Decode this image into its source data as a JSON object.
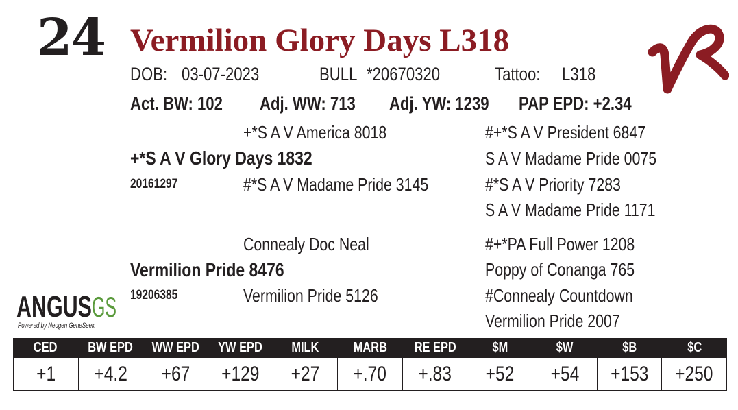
{
  "lot_number": "24",
  "animal_name": "Vermilion Glory Days L318",
  "dob_label": "DOB:",
  "dob": "03-07-2023",
  "sex": "BULL",
  "registration": "*20670320",
  "tattoo_label": "Tattoo:",
  "tattoo": "L318",
  "performance": {
    "act_bw": "Act. BW: 102",
    "adj_ww": "Adj. WW: 713",
    "adj_yw": "Adj. YW: 1239",
    "pap_epd": "PAP EPD: +2.34"
  },
  "pedigree": {
    "sire": {
      "name": "+*S A V Glory Days 1832",
      "reg": "20161297",
      "sire": "+*S A V America 8018",
      "dam": "#*S A V Madame Pride 3145",
      "sire_sire": "#+*S A V President 6847",
      "sire_dam": "S A V Madame Pride 0075",
      "dam_sire": "#*S A V Priority 7283",
      "dam_dam": "S A V Madame Pride 1171"
    },
    "dam": {
      "name": "Vermilion Pride 8476",
      "reg": "19206385",
      "sire": "Connealy Doc Neal",
      "dam": "Vermilion Pride 5126",
      "sire_sire": "#+*PA Full Power 1208",
      "sire_dam": "Poppy of Conanga 765",
      "dam_sire": "#Connealy Countdown",
      "dam_dam": "Vermilion Pride 2007"
    }
  },
  "logo": {
    "angus_text": "ANGUS",
    "gs_text": "GS",
    "tagline": "Powered by Neogen GeneSeek",
    "brand_red": "#8b1c23",
    "angus_green": "#5a9a3c"
  },
  "epd": {
    "headers": [
      "CED",
      "BW EPD",
      "WW EPD",
      "YW EPD",
      "MILK EPD",
      "MARB EPD",
      "RE EPD",
      "$M",
      "$W",
      "$B",
      "$C"
    ],
    "values": [
      "+1",
      "+4.2",
      "+67",
      "+129",
      "+27",
      "+.70",
      "+.83",
      "+52",
      "+54",
      "+153",
      "+250"
    ]
  }
}
